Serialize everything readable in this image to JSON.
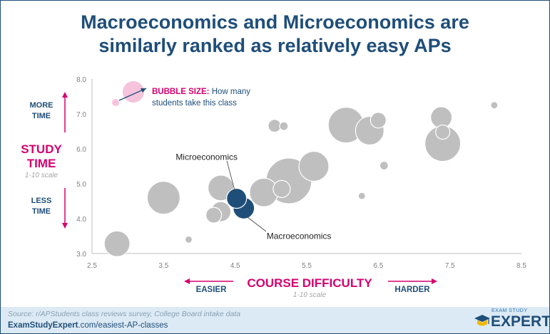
{
  "title": {
    "line1": "Macroeconomics and Microeconomics are",
    "line2": "similarly ranked as relatively easy APs"
  },
  "legend": {
    "bold": "BUBBLE SIZE:",
    "rest_line1": " How many",
    "rest_line2": "students take this class"
  },
  "y_axis": {
    "more": [
      "MORE",
      "TIME"
    ],
    "less": [
      "LESS",
      "TIME"
    ],
    "label": [
      "STUDY",
      "TIME"
    ],
    "scale": "1-10 scale"
  },
  "x_axis": {
    "label": "COURSE DIFFICULTY",
    "scale": "1-10 scale",
    "easier": "EASIER",
    "harder": "HARDER"
  },
  "footer": {
    "source": "Source: r/APStudents class reviews survey, College Board intake data",
    "url_bold": "ExamStudyExpert",
    "url_rest": ".com/easiest-AP-classes",
    "logo_small": "EXAM STUDY",
    "logo_big": "EXPERT"
  },
  "colors": {
    "title": "#1f4e79",
    "bubble": "#bfbfbf",
    "highlight": "#1f4e79",
    "accent": "#d6006f",
    "legend_bubble": "#f6c3dc"
  },
  "chart_data": {
    "type": "scatter",
    "title": "Macroeconomics and Microeconomics are similarly ranked as relatively easy APs",
    "xlabel": "COURSE DIFFICULTY",
    "ylabel": "STUDY TIME",
    "xlim": [
      2.5,
      8.5
    ],
    "ylim": [
      3.0,
      8.0
    ],
    "xticks": [
      "2.5",
      "3.5",
      "4.5",
      "5.5",
      "6.5",
      "7.5",
      "8.5"
    ],
    "yticks": [
      "3.0",
      "4.0",
      "5.0",
      "6.0",
      "7.0",
      "8.0"
    ],
    "grid": false,
    "size_meaning": "How many students take this class",
    "points": [
      {
        "x": 2.85,
        "y": 3.28,
        "size": 18,
        "highlight": false
      },
      {
        "x": 3.85,
        "y": 3.4,
        "size": 5,
        "highlight": false
      },
      {
        "x": 3.5,
        "y": 4.6,
        "size": 23,
        "highlight": false
      },
      {
        "x": 4.2,
        "y": 4.1,
        "size": 11,
        "highlight": false
      },
      {
        "x": 4.3,
        "y": 4.2,
        "size": 14,
        "highlight": false
      },
      {
        "x": 4.3,
        "y": 4.88,
        "size": 18,
        "highlight": false
      },
      {
        "x": 4.9,
        "y": 4.75,
        "size": 20,
        "highlight": false
      },
      {
        "x": 5.15,
        "y": 4.85,
        "size": 12,
        "highlight": false
      },
      {
        "x": 5.25,
        "y": 5.08,
        "size": 32,
        "highlight": false
      },
      {
        "x": 5.6,
        "y": 5.5,
        "size": 21,
        "highlight": false
      },
      {
        "x": 5.05,
        "y": 6.66,
        "size": 9,
        "highlight": false
      },
      {
        "x": 5.18,
        "y": 6.65,
        "size": 6,
        "highlight": false
      },
      {
        "x": 6.05,
        "y": 6.68,
        "size": 25,
        "highlight": false
      },
      {
        "x": 6.38,
        "y": 6.52,
        "size": 20,
        "highlight": false
      },
      {
        "x": 6.5,
        "y": 6.82,
        "size": 11,
        "highlight": false
      },
      {
        "x": 6.27,
        "y": 4.65,
        "size": 5,
        "highlight": false
      },
      {
        "x": 6.58,
        "y": 5.52,
        "size": 6,
        "highlight": false
      },
      {
        "x": 7.38,
        "y": 6.9,
        "size": 15,
        "highlight": false
      },
      {
        "x": 7.4,
        "y": 6.15,
        "size": 25,
        "highlight": false
      },
      {
        "x": 7.4,
        "y": 6.48,
        "size": 10,
        "highlight": false
      },
      {
        "x": 8.12,
        "y": 7.25,
        "size": 5,
        "highlight": false
      },
      {
        "x": 4.52,
        "y": 4.58,
        "size": 14,
        "highlight": true,
        "label": "Microeconomics"
      },
      {
        "x": 4.62,
        "y": 4.3,
        "size": 15,
        "highlight": true,
        "label": "Macroeconomics"
      }
    ]
  }
}
